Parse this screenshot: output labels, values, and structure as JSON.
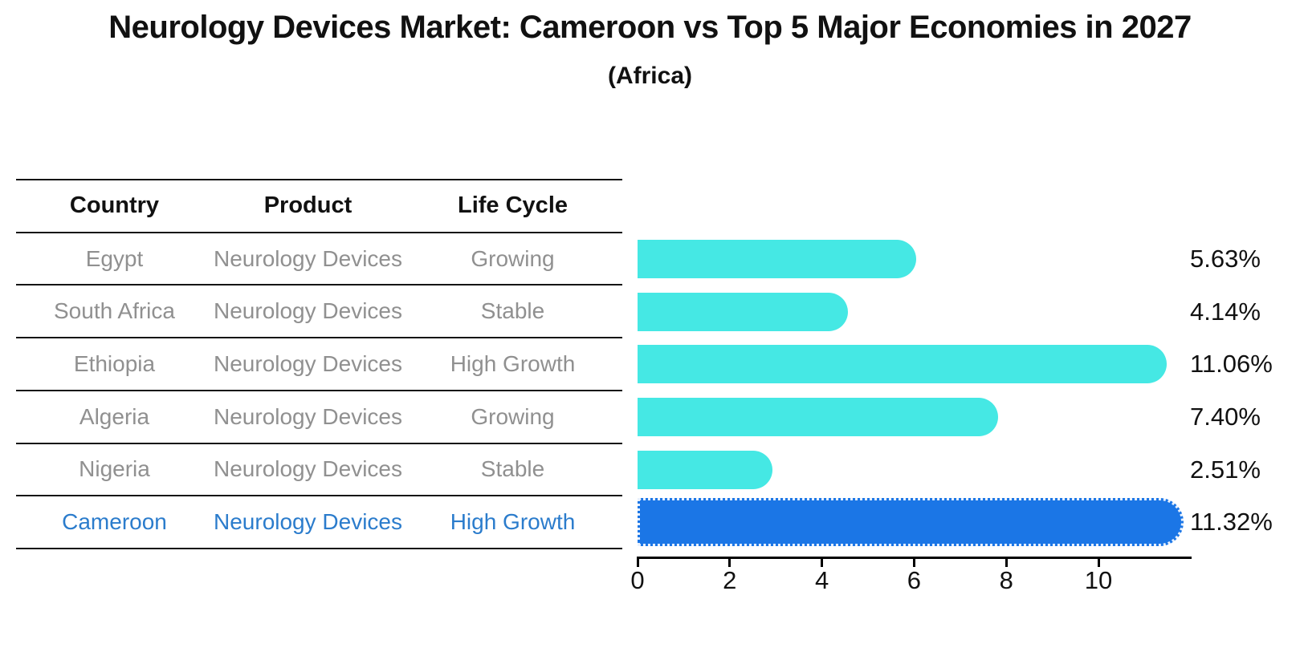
{
  "title": "Neurology Devices Market: Cameroon vs Top 5 Major Economies in 2027",
  "subtitle": "(Africa)",
  "table": {
    "headers": [
      "Country",
      "Product",
      "Life Cycle"
    ],
    "rows": [
      {
        "country": "Egypt",
        "product": "Neurology Devices",
        "life_cycle": "Growing",
        "highlight": false
      },
      {
        "country": "South Africa",
        "product": "Neurology Devices",
        "life_cycle": "Stable",
        "highlight": false
      },
      {
        "country": "Ethiopia",
        "product": "Neurology Devices",
        "life_cycle": "High Growth",
        "highlight": false
      },
      {
        "country": "Algeria",
        "product": "Neurology Devices",
        "life_cycle": "Growing",
        "highlight": false
      },
      {
        "country": "Nigeria",
        "product": "Neurology Devices",
        "life_cycle": "Stable",
        "highlight": false
      },
      {
        "country": "Cameroon",
        "product": "Neurology Devices",
        "life_cycle": "High Growth",
        "highlight": true
      }
    ]
  },
  "chart_data": {
    "type": "bar",
    "orientation": "horizontal",
    "title": "Neurology Devices Market: Cameroon vs Top 5 Major Economies in 2027 (Africa)",
    "categories": [
      "Egypt",
      "South Africa",
      "Ethiopia",
      "Algeria",
      "Nigeria",
      "Cameroon"
    ],
    "values": [
      5.63,
      4.14,
      11.06,
      7.4,
      2.51,
      11.32
    ],
    "value_labels": [
      "5.63%",
      "4.14%",
      "11.06%",
      "7.40%",
      "2.51%",
      "11.32%"
    ],
    "units": "%",
    "xlabel": "",
    "ylabel": "",
    "xlim": [
      0,
      12
    ],
    "x_ticks": [
      "0",
      "2",
      "4",
      "6",
      "8",
      "10"
    ],
    "grid": false,
    "legend_position": "none",
    "highlight_category": "Cameroon",
    "bar_style": {
      "rounded_right_end": true,
      "highlight_hatch": "dotted-edge"
    }
  },
  "colors": {
    "bar_default": "#45E8E4",
    "bar_highlight": "#1B76E6",
    "highlight_text": "#2b7ccc",
    "row_text": "#909090",
    "header_text": "#111111",
    "axis": "#000000",
    "background": "#ffffff"
  }
}
